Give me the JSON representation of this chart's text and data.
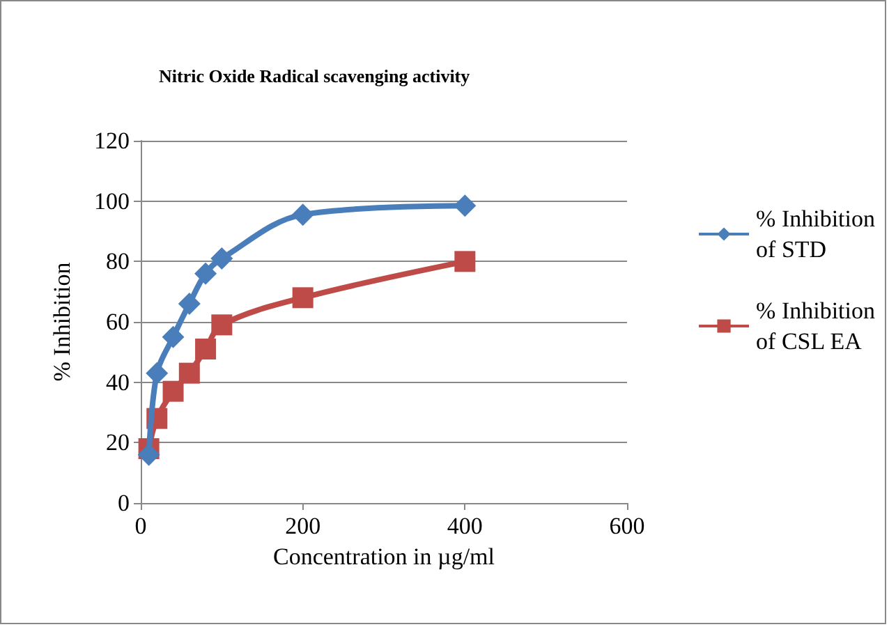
{
  "chart_data": {
    "type": "line",
    "title": "Nitric Oxide Radical scavenging activity",
    "xlabel": "Concentration in µg/ml",
    "ylabel": "% Inhibition",
    "x": [
      10,
      20,
      40,
      60,
      80,
      100,
      200,
      400
    ],
    "series": [
      {
        "name": "% Inhibition of STD",
        "color": "#4a7ebb",
        "marker": "diamond",
        "values": [
          16,
          43,
          55,
          66,
          76,
          81,
          95.5,
          98.5
        ]
      },
      {
        "name": "% Inhibition of CSL EA",
        "color": "#be4b48",
        "marker": "square",
        "values": [
          18,
          28,
          37,
          43,
          51,
          59,
          68,
          80
        ]
      }
    ],
    "xlim": [
      0,
      600
    ],
    "xticks": [
      0,
      200,
      400,
      600
    ],
    "ylim": [
      0,
      120
    ],
    "yticks": [
      0,
      20,
      40,
      60,
      80,
      100,
      120
    ],
    "grid": "y",
    "legend": "right",
    "line_style": "solid"
  }
}
